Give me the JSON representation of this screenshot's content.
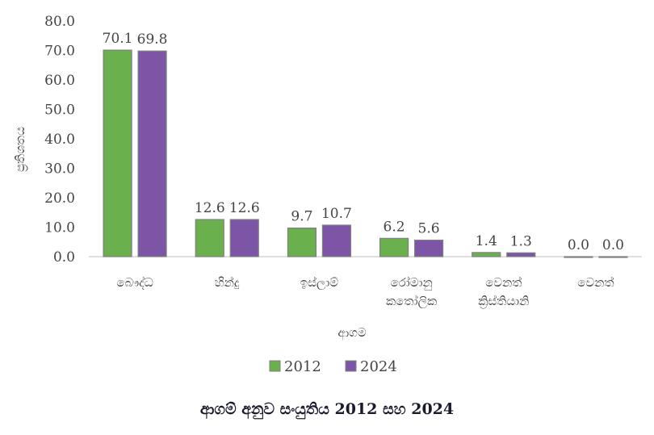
{
  "chart_data": {
    "type": "bar",
    "categories": [
      [
        "බෞද්ධ"
      ],
      [
        "හින්දු"
      ],
      [
        "ඉස්ලාම්"
      ],
      [
        "රෝමානු",
        "කතෝලික"
      ],
      [
        "වෙනත්",
        "ක්‍රිස්තියානි"
      ],
      [
        "වෙනත්"
      ]
    ],
    "series": [
      {
        "name": "2012",
        "values": [
          70.1,
          12.6,
          9.7,
          6.2,
          1.4,
          0.0
        ],
        "color": "#6ab04c"
      },
      {
        "name": "2024",
        "values": [
          69.8,
          12.6,
          10.7,
          5.6,
          1.3,
          0.0
        ],
        "color": "#7d55a6"
      }
    ],
    "yticks": [
      "0.0",
      "10.0",
      "20.0",
      "30.0",
      "40.0",
      "50.0",
      "60.0",
      "70.0",
      "80.0"
    ],
    "ylim": [
      0,
      80
    ],
    "xlabel": "ආගම",
    "ylabel": "ප්‍රතිශතය",
    "title": "ආගම් අනුව සංයුතිය 2012 සහ 2024",
    "grid": false,
    "legend_position": "bottom",
    "border_color": "#808080"
  }
}
